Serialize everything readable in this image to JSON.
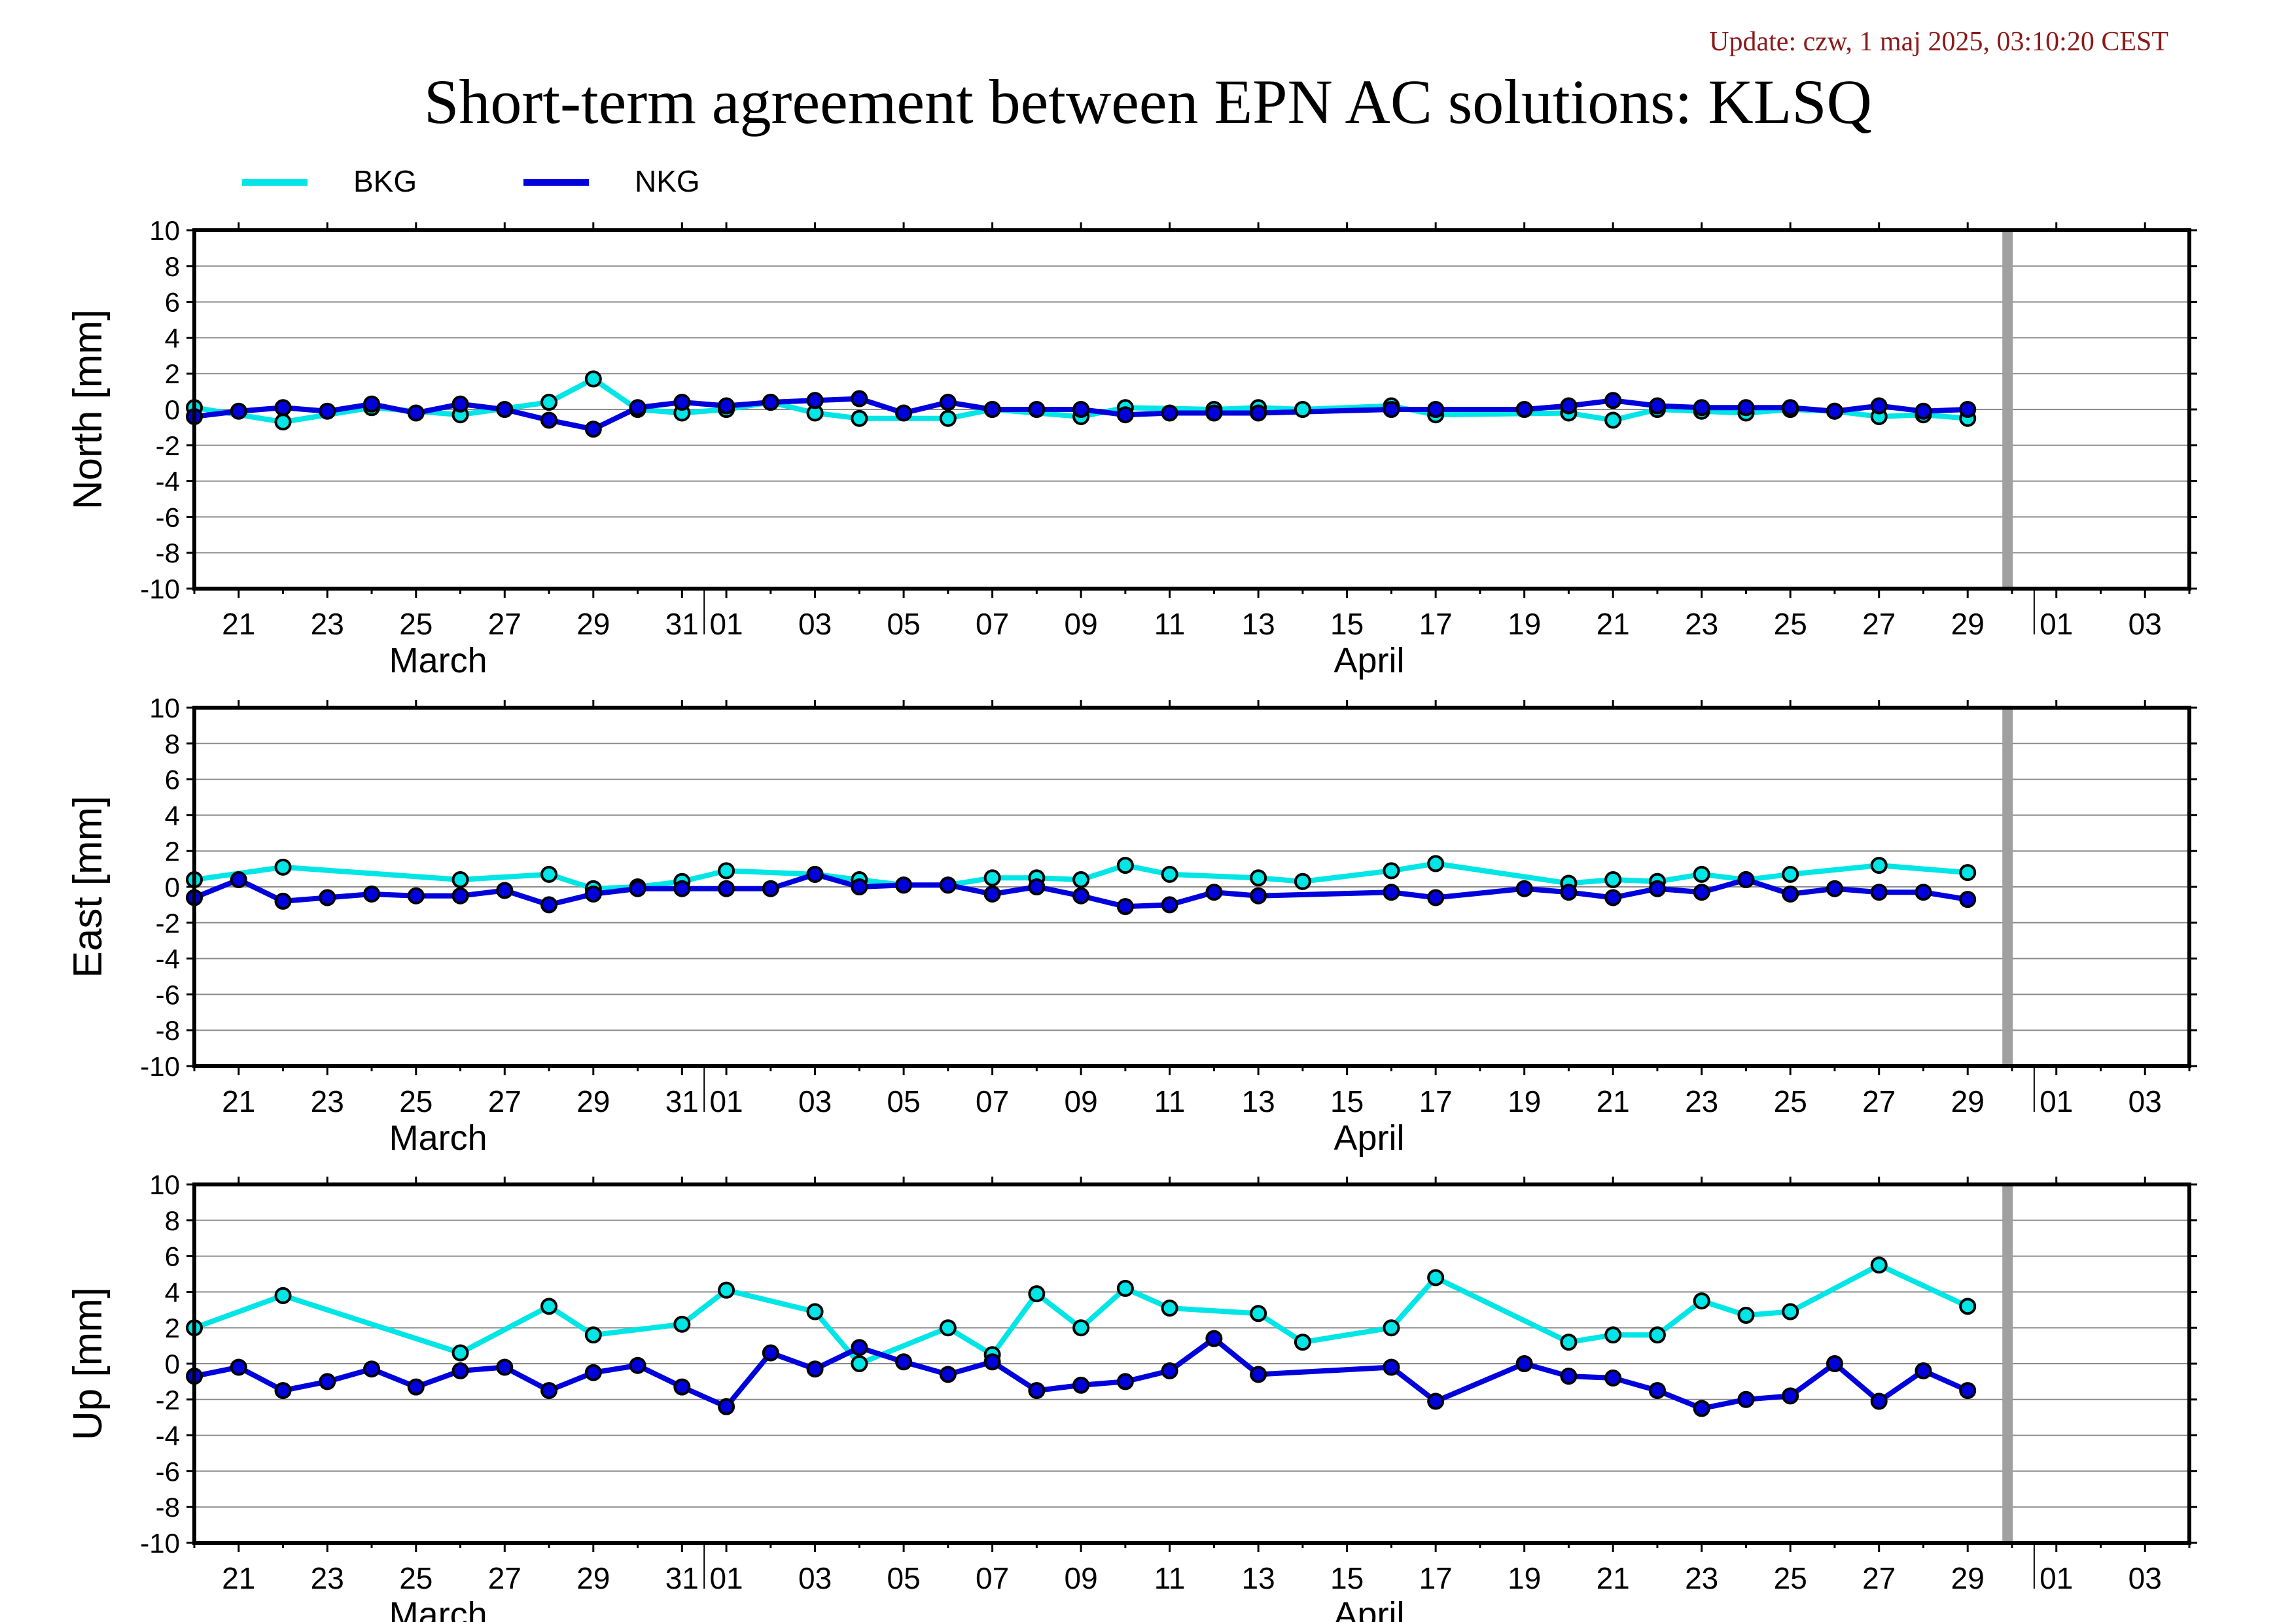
{
  "update_text": "Update: czw, 1 maj 2025, 03:10:20 CEST",
  "title": "Short-term agreement between EPN AC solutions: KLSQ",
  "legend": [
    {
      "name": "BKG",
      "color": "#00e5e5"
    },
    {
      "name": "NKG",
      "color": "#0000dd"
    }
  ],
  "x_axis": {
    "start_day": 20,
    "end_day": 65,
    "tick_labels": [
      {
        "day": 21,
        "label": "21"
      },
      {
        "day": 23,
        "label": "23"
      },
      {
        "day": 25,
        "label": "25"
      },
      {
        "day": 27,
        "label": "27"
      },
      {
        "day": 29,
        "label": "29"
      },
      {
        "day": 31,
        "label": "31"
      },
      {
        "day": 32,
        "label": "01"
      },
      {
        "day": 34,
        "label": "03"
      },
      {
        "day": 36,
        "label": "05"
      },
      {
        "day": 38,
        "label": "07"
      },
      {
        "day": 40,
        "label": "09"
      },
      {
        "day": 42,
        "label": "11"
      },
      {
        "day": 44,
        "label": "13"
      },
      {
        "day": 46,
        "label": "15"
      },
      {
        "day": 48,
        "label": "17"
      },
      {
        "day": 50,
        "label": "19"
      },
      {
        "day": 52,
        "label": "21"
      },
      {
        "day": 54,
        "label": "23"
      },
      {
        "day": 56,
        "label": "25"
      },
      {
        "day": 58,
        "label": "27"
      },
      {
        "day": 60,
        "label": "29"
      },
      {
        "day": 62,
        "label": "01"
      },
      {
        "day": 64,
        "label": "03"
      }
    ],
    "month_labels": [
      {
        "day": 25.5,
        "label": "March"
      },
      {
        "day": 46.5,
        "label": "April"
      }
    ],
    "month_boundaries": [
      31.5,
      61.5
    ],
    "current_marker_day": 60.9
  },
  "chart_data": [
    {
      "type": "line",
      "ylabel": "North [mm]",
      "ylim": [
        -10,
        10
      ],
      "yticks": [
        10,
        8,
        6,
        4,
        2,
        0,
        -2,
        -4,
        -6,
        -8,
        -10
      ],
      "grid": true,
      "series": [
        {
          "name": "BKG",
          "color": "#00e5e5",
          "points": [
            [
              20,
              0.1
            ],
            [
              22,
              -0.7
            ],
            [
              24,
              0.1
            ],
            [
              26,
              -0.3
            ],
            [
              28,
              0.4
            ],
            [
              29,
              1.7
            ],
            [
              30,
              0
            ],
            [
              31,
              -0.2
            ],
            [
              32,
              0
            ],
            [
              33,
              0.4
            ],
            [
              34,
              -0.2
            ],
            [
              35,
              -0.5
            ],
            [
              37,
              -0.5
            ],
            [
              38,
              0
            ],
            [
              40,
              -0.4
            ],
            [
              41,
              0.1
            ],
            [
              43,
              0
            ],
            [
              44,
              0.1
            ],
            [
              45,
              0
            ],
            [
              47,
              0.2
            ],
            [
              48,
              -0.3
            ],
            [
              51,
              -0.2
            ],
            [
              52,
              -0.6
            ],
            [
              53,
              0
            ],
            [
              54,
              -0.1
            ],
            [
              55,
              -0.2
            ],
            [
              56,
              0
            ],
            [
              57,
              -0.1
            ],
            [
              58,
              -0.4
            ],
            [
              59,
              -0.3
            ],
            [
              60,
              -0.5
            ]
          ]
        },
        {
          "name": "NKG",
          "color": "#0000dd",
          "points": [
            [
              20,
              -0.4
            ],
            [
              21,
              -0.1
            ],
            [
              22,
              0.1
            ],
            [
              23,
              -0.1
            ],
            [
              24,
              0.3
            ],
            [
              25,
              -0.2
            ],
            [
              26,
              0.3
            ],
            [
              27,
              0
            ],
            [
              28,
              -0.6
            ],
            [
              29,
              -1.1
            ],
            [
              30,
              0.1
            ],
            [
              31,
              0.4
            ],
            [
              32,
              0.2
            ],
            [
              33,
              0.4
            ],
            [
              34,
              0.5
            ],
            [
              35,
              0.6
            ],
            [
              36,
              -0.2
            ],
            [
              37,
              0.4
            ],
            [
              38,
              0
            ],
            [
              39,
              0
            ],
            [
              40,
              0
            ],
            [
              41,
              -0.3
            ],
            [
              42,
              -0.2
            ],
            [
              43,
              -0.2
            ],
            [
              44,
              -0.2
            ],
            [
              47,
              0
            ],
            [
              48,
              0
            ],
            [
              50,
              0
            ],
            [
              51,
              0.2
            ],
            [
              52,
              0.5
            ],
            [
              53,
              0.2
            ],
            [
              54,
              0.1
            ],
            [
              55,
              0.1
            ],
            [
              56,
              0.1
            ],
            [
              57,
              -0.1
            ],
            [
              58,
              0.2
            ],
            [
              59,
              -0.1
            ],
            [
              60,
              0
            ]
          ]
        }
      ]
    },
    {
      "type": "line",
      "ylabel": "East [mm]",
      "ylim": [
        -10,
        10
      ],
      "yticks": [
        10,
        8,
        6,
        4,
        2,
        0,
        -2,
        -4,
        -6,
        -8,
        -10
      ],
      "grid": true,
      "series": [
        {
          "name": "BKG",
          "color": "#00e5e5",
          "points": [
            [
              20,
              0.4
            ],
            [
              22,
              1.1
            ],
            [
              26,
              0.4
            ],
            [
              28,
              0.7
            ],
            [
              29,
              -0.1
            ],
            [
              30,
              0
            ],
            [
              31,
              0.3
            ],
            [
              32,
              0.9
            ],
            [
              34,
              0.7
            ],
            [
              35,
              0.4
            ],
            [
              36,
              0.1
            ],
            [
              37,
              0.1
            ],
            [
              38,
              0.5
            ],
            [
              39,
              0.5
            ],
            [
              40,
              0.4
            ],
            [
              41,
              1.2
            ],
            [
              42,
              0.7
            ],
            [
              44,
              0.5
            ],
            [
              45,
              0.3
            ],
            [
              47,
              0.9
            ],
            [
              48,
              1.3
            ],
            [
              51,
              0.2
            ],
            [
              52,
              0.4
            ],
            [
              53,
              0.3
            ],
            [
              54,
              0.7
            ],
            [
              55,
              0.4
            ],
            [
              56,
              0.7
            ],
            [
              58,
              1.2
            ],
            [
              60,
              0.8
            ]
          ]
        },
        {
          "name": "NKG",
          "color": "#0000dd",
          "points": [
            [
              20,
              -0.6
            ],
            [
              21,
              0.4
            ],
            [
              22,
              -0.8
            ],
            [
              23,
              -0.6
            ],
            [
              24,
              -0.4
            ],
            [
              25,
              -0.5
            ],
            [
              26,
              -0.5
            ],
            [
              27,
              -0.2
            ],
            [
              28,
              -1.0
            ],
            [
              29,
              -0.4
            ],
            [
              30,
              -0.1
            ],
            [
              31,
              -0.1
            ],
            [
              32,
              -0.1
            ],
            [
              33,
              -0.1
            ],
            [
              34,
              0.7
            ],
            [
              35,
              0
            ],
            [
              36,
              0.1
            ],
            [
              37,
              0.1
            ],
            [
              38,
              -0.4
            ],
            [
              39,
              0
            ],
            [
              40,
              -0.5
            ],
            [
              41,
              -1.1
            ],
            [
              42,
              -1.0
            ],
            [
              43,
              -0.3
            ],
            [
              44,
              -0.5
            ],
            [
              47,
              -0.3
            ],
            [
              48,
              -0.6
            ],
            [
              50,
              -0.1
            ],
            [
              51,
              -0.3
            ],
            [
              52,
              -0.6
            ],
            [
              53,
              -0.1
            ],
            [
              54,
              -0.3
            ],
            [
              55,
              0.4
            ],
            [
              56,
              -0.4
            ],
            [
              57,
              -0.1
            ],
            [
              58,
              -0.3
            ],
            [
              59,
              -0.3
            ],
            [
              60,
              -0.7
            ]
          ]
        }
      ]
    },
    {
      "type": "line",
      "ylabel": "Up [mm]",
      "ylim": [
        -10,
        10
      ],
      "yticks": [
        10,
        8,
        6,
        4,
        2,
        0,
        -2,
        -4,
        -6,
        -8,
        -10
      ],
      "grid": true,
      "series": [
        {
          "name": "BKG",
          "color": "#00e5e5",
          "points": [
            [
              20,
              2.0
            ],
            [
              22,
              3.8
            ],
            [
              26,
              0.6
            ],
            [
              28,
              3.2
            ],
            [
              29,
              1.6
            ],
            [
              31,
              2.2
            ],
            [
              32,
              4.1
            ],
            [
              34,
              2.9
            ],
            [
              35,
              0
            ],
            [
              37,
              2.0
            ],
            [
              38,
              0.5
            ],
            [
              39,
              3.9
            ],
            [
              40,
              2.0
            ],
            [
              41,
              4.2
            ],
            [
              42,
              3.1
            ],
            [
              44,
              2.8
            ],
            [
              45,
              1.2
            ],
            [
              47,
              2.0
            ],
            [
              48,
              4.8
            ],
            [
              51,
              1.2
            ],
            [
              52,
              1.6
            ],
            [
              53,
              1.6
            ],
            [
              54,
              3.5
            ],
            [
              55,
              2.7
            ],
            [
              56,
              2.9
            ],
            [
              58,
              5.5
            ],
            [
              60,
              3.2
            ]
          ]
        },
        {
          "name": "NKG",
          "color": "#0000dd",
          "points": [
            [
              20,
              -0.7
            ],
            [
              21,
              -0.2
            ],
            [
              22,
              -1.5
            ],
            [
              23,
              -1.0
            ],
            [
              24,
              -0.3
            ],
            [
              25,
              -1.3
            ],
            [
              26,
              -0.4
            ],
            [
              27,
              -0.2
            ],
            [
              28,
              -1.5
            ],
            [
              29,
              -0.5
            ],
            [
              30,
              -0.1
            ],
            [
              31,
              -1.3
            ],
            [
              32,
              -2.4
            ],
            [
              33,
              0.6
            ],
            [
              34,
              -0.3
            ],
            [
              35,
              0.9
            ],
            [
              36,
              0.1
            ],
            [
              37,
              -0.6
            ],
            [
              38,
              0.1
            ],
            [
              39,
              -1.5
            ],
            [
              40,
              -1.2
            ],
            [
              41,
              -1.0
            ],
            [
              42,
              -0.4
            ],
            [
              43,
              1.4
            ],
            [
              44,
              -0.6
            ],
            [
              47,
              -0.2
            ],
            [
              48,
              -2.1
            ],
            [
              50,
              0
            ],
            [
              51,
              -0.7
            ],
            [
              52,
              -0.8
            ],
            [
              53,
              -1.5
            ],
            [
              54,
              -2.5
            ],
            [
              55,
              -2.0
            ],
            [
              56,
              -1.8
            ],
            [
              57,
              0
            ],
            [
              58,
              -2.1
            ],
            [
              59,
              -0.4
            ],
            [
              60,
              -1.5
            ]
          ]
        }
      ]
    }
  ]
}
